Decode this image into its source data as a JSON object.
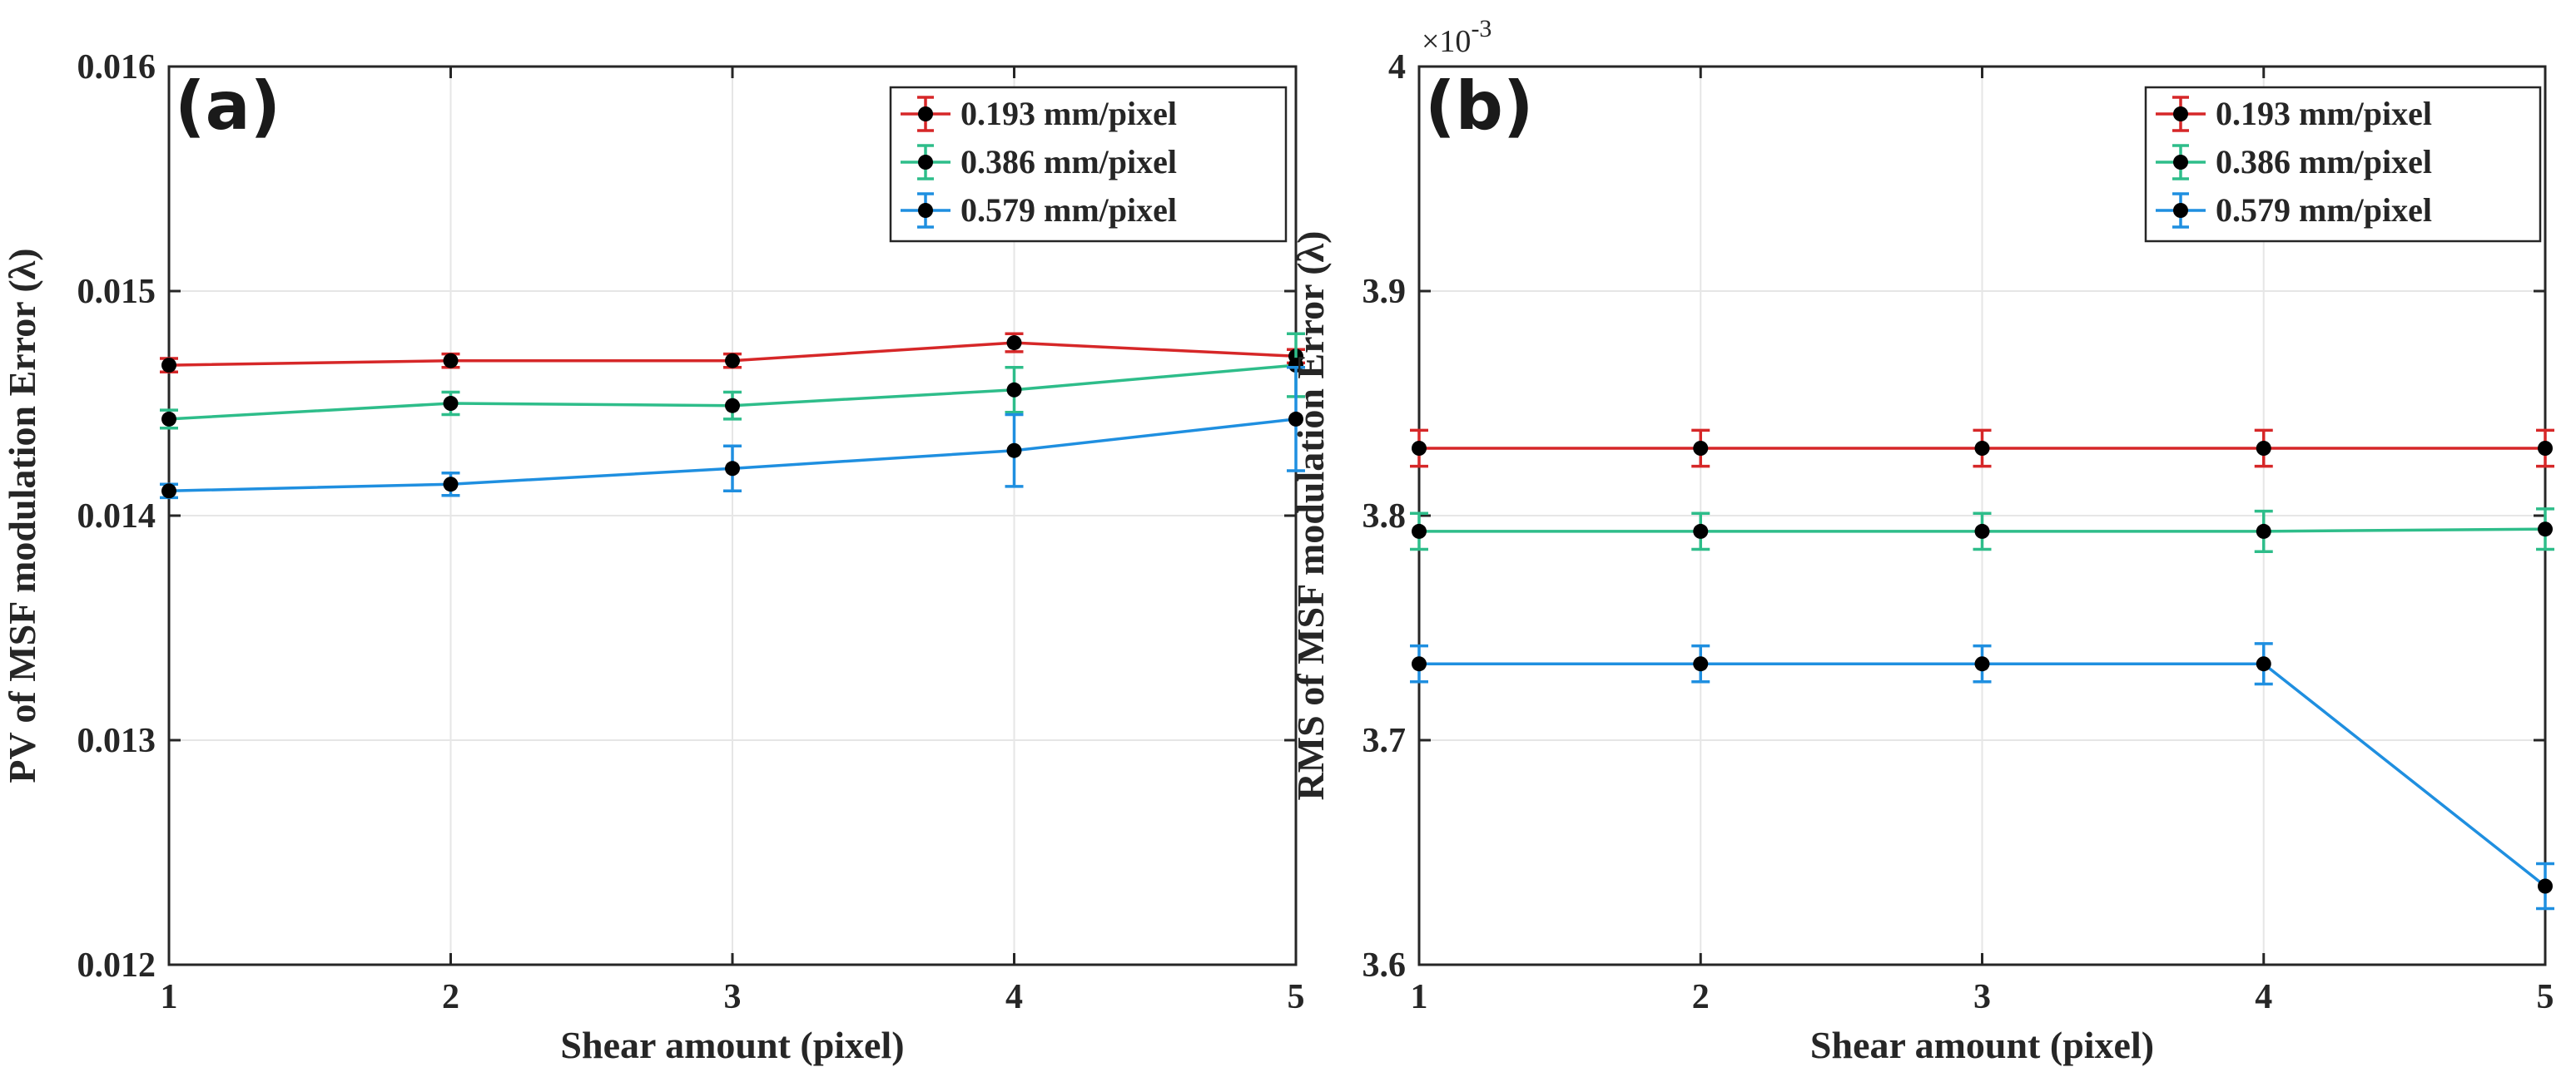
{
  "chart_data": [
    {
      "type": "line",
      "panel": "(a)",
      "xlabel": "Shear amount (pixel)",
      "ylabel": "PV of MSF modulation Error (λ)",
      "xlim": [
        1,
        5
      ],
      "ylim": [
        0.012,
        0.016
      ],
      "xticks": [
        1,
        2,
        3,
        4,
        5
      ],
      "xtick_labels": [
        "1",
        "2",
        "3",
        "4",
        "5"
      ],
      "yticks": [
        0.012,
        0.013,
        0.014,
        0.015,
        0.016
      ],
      "ytick_labels": [
        "0.012",
        "0.013",
        "0.014",
        "0.015",
        "0.016"
      ],
      "grid": true,
      "legend_position": "top-right",
      "x": [
        1,
        2,
        3,
        4,
        5
      ],
      "series": [
        {
          "name": "0.193 mm/pixel",
          "color": "#d62728",
          "values": [
            0.01467,
            0.01469,
            0.01469,
            0.01477,
            0.01471
          ],
          "errors": [
            3e-05,
            3e-05,
            3e-05,
            4e-05,
            3e-05
          ]
        },
        {
          "name": "0.386 mm/pixel",
          "color": "#2ebd8a",
          "values": [
            0.01443,
            0.0145,
            0.01449,
            0.01456,
            0.01467
          ],
          "errors": [
            4e-05,
            5e-05,
            6e-05,
            0.0001,
            0.00014
          ]
        },
        {
          "name": "0.579 mm/pixel",
          "color": "#1f8fe0",
          "values": [
            0.01411,
            0.01414,
            0.01421,
            0.01429,
            0.01443
          ],
          "errors": [
            3e-05,
            5e-05,
            0.0001,
            0.00016,
            0.00023
          ]
        }
      ]
    },
    {
      "type": "line",
      "panel": "(b)",
      "xlabel": "Shear amount (pixel)",
      "ylabel": "RMS of MSF modulation Error (λ)",
      "xlim": [
        1,
        5
      ],
      "ylim": [
        3.6,
        4.0
      ],
      "xticks": [
        1,
        2,
        3,
        4,
        5
      ],
      "xtick_labels": [
        "1",
        "2",
        "3",
        "4",
        "5"
      ],
      "yticks": [
        3.6,
        3.7,
        3.8,
        3.9,
        4.0
      ],
      "ytick_labels": [
        "3.6",
        "3.7",
        "3.8",
        "3.9",
        "4"
      ],
      "exponent_base": "×10",
      "exponent_power": "-3",
      "grid": true,
      "legend_position": "top-right",
      "x": [
        1,
        2,
        3,
        4,
        5
      ],
      "series": [
        {
          "name": "0.193 mm/pixel",
          "color": "#d62728",
          "values": [
            3.83,
            3.83,
            3.83,
            3.83,
            3.83
          ],
          "errors": [
            0.008,
            0.008,
            0.008,
            0.008,
            0.008
          ]
        },
        {
          "name": "0.386 mm/pixel",
          "color": "#2ebd8a",
          "values": [
            3.793,
            3.793,
            3.793,
            3.793,
            3.794
          ],
          "errors": [
            0.008,
            0.008,
            0.008,
            0.009,
            0.009
          ]
        },
        {
          "name": "0.579 mm/pixel",
          "color": "#1f8fe0",
          "values": [
            3.734,
            3.734,
            3.734,
            3.734,
            3.635
          ],
          "errors": [
            0.008,
            0.008,
            0.008,
            0.009,
            0.01
          ]
        }
      ]
    }
  ]
}
